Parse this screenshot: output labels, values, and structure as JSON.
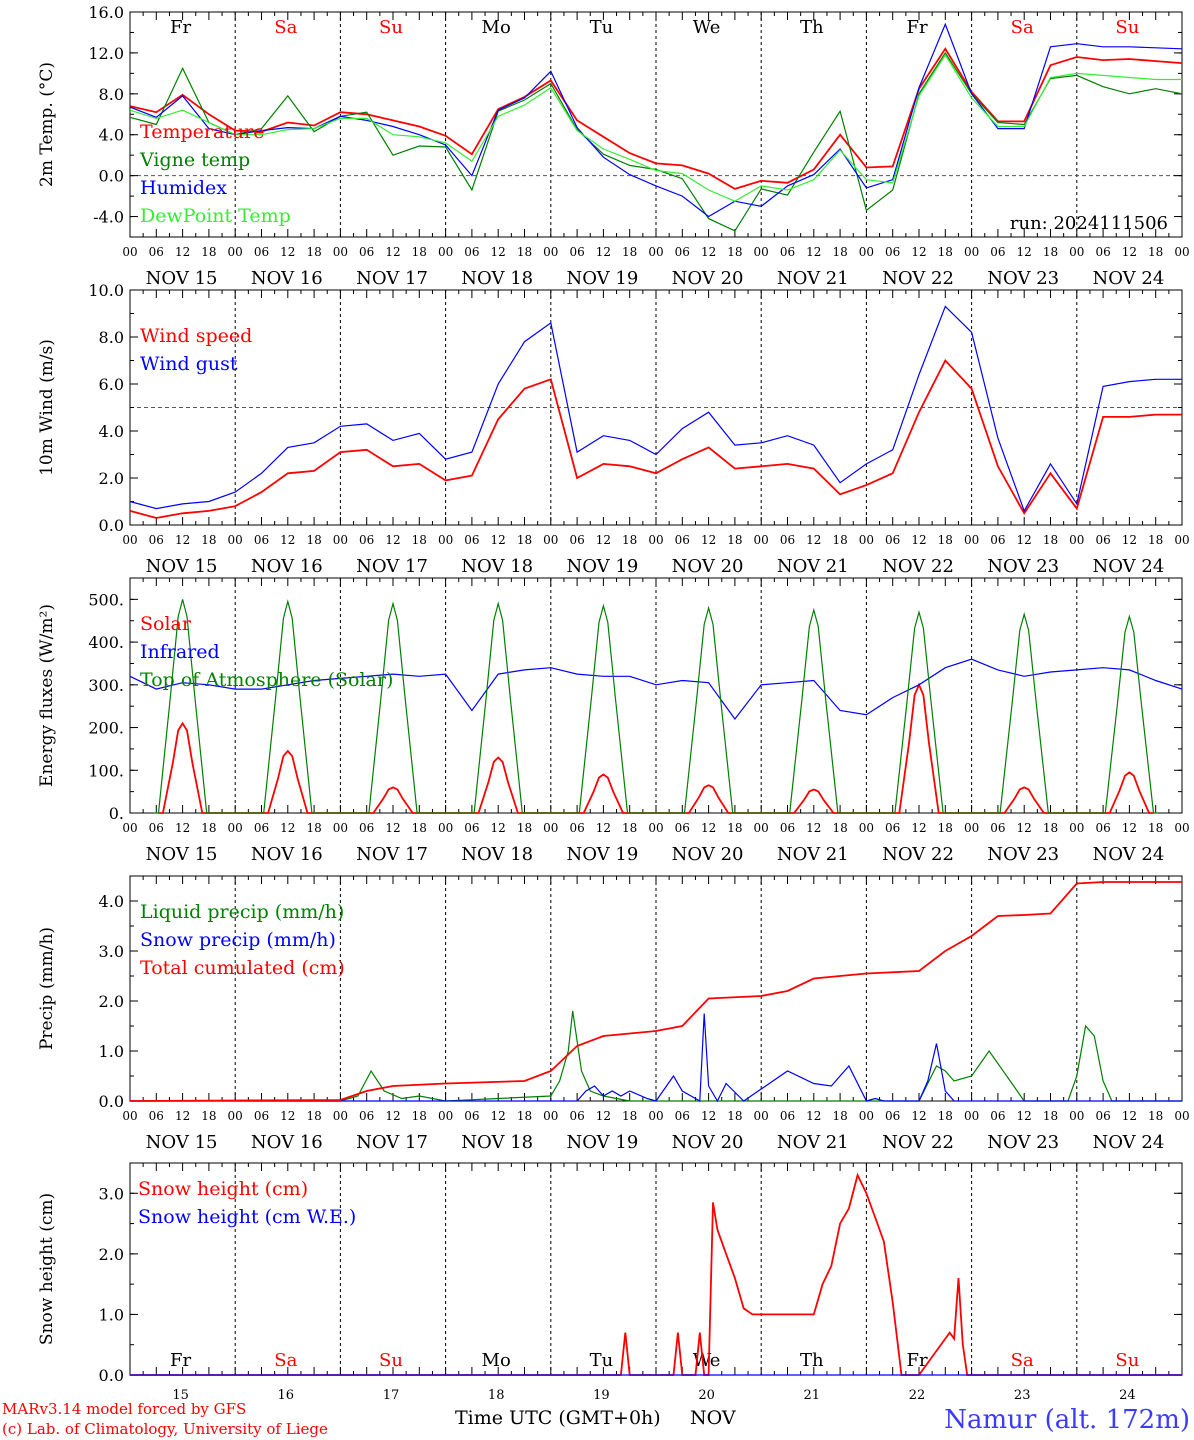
{
  "colors": {
    "red": "#ff0000",
    "green": "#008000",
    "blue": "#0000ff",
    "light_green": "#33ee33",
    "weekend": "#ff0000",
    "weekday": "#000000",
    "station": "#3b3bff"
  },
  "hour_ticks": [
    "00",
    "06",
    "12",
    "18"
  ],
  "date_labels": [
    "NOV 15",
    "NOV 16",
    "NOV 17",
    "NOV 18",
    "NOV 19",
    "NOV 20",
    "NOV 21",
    "NOV 22",
    "NOV 23",
    "NOV 24"
  ],
  "day_names": [
    {
      "label": "Fr",
      "weekend": false
    },
    {
      "label": "Sa",
      "weekend": true
    },
    {
      "label": "Su",
      "weekend": true
    },
    {
      "label": "Mo",
      "weekend": false
    },
    {
      "label": "Tu",
      "weekend": false
    },
    {
      "label": "We",
      "weekend": false
    },
    {
      "label": "Th",
      "weekend": false
    },
    {
      "label": "Fr",
      "weekend": false
    },
    {
      "label": "Sa",
      "weekend": true
    },
    {
      "label": "Su",
      "weekend": true
    }
  ],
  "bottom_day_numbers": [
    "15",
    "16",
    "17",
    "18",
    "19",
    "20",
    "21",
    "22",
    "23",
    "24"
  ],
  "footer": {
    "model": "MARv3.14 model forced by GFS",
    "credit": "(c) Lab. of Climatology, University of Liege",
    "time_label": "Time UTC (GMT+0h)",
    "month": "NOV",
    "station": "Namur (alt. 172m)"
  },
  "chart_data": [
    {
      "type": "line",
      "ylabel": "2m Temp. (°C)",
      "ylim": [
        -6,
        16
      ],
      "yticks": [
        "16.0",
        "12.0",
        "8.0",
        "4.0",
        "0.0",
        "-4.0"
      ],
      "ytick_values": [
        16,
        12,
        8,
        4,
        0,
        -4
      ],
      "reference_line": 0,
      "annotation": "run: 2024111506",
      "x_unit": "hours since NOV 15 00 UTC",
      "series": [
        {
          "name": "Temperature",
          "color": "red",
          "x": [
            0,
            6,
            12,
            18,
            24,
            30,
            36,
            42,
            48,
            54,
            60,
            66,
            72,
            78,
            84,
            90,
            96,
            102,
            108,
            114,
            120,
            126,
            132,
            138,
            144,
            150,
            156,
            162,
            168,
            174,
            180,
            186,
            192,
            198,
            204,
            210,
            216,
            222,
            228,
            234,
            240
          ],
          "y": [
            6.8,
            6.2,
            7.9,
            6.0,
            4.4,
            4.3,
            5.2,
            4.9,
            6.2,
            6.0,
            5.4,
            4.8,
            3.9,
            2.1,
            6.5,
            7.7,
            9.3,
            5.4,
            3.8,
            2.2,
            1.2,
            1.0,
            0.2,
            -1.3,
            -0.5,
            -0.7,
            0.6,
            4.0,
            0.8,
            0.9,
            8.5,
            12.4,
            8.2,
            5.3,
            5.3,
            10.8,
            11.6,
            11.3,
            11.4,
            11.2,
            11.0
          ]
        },
        {
          "name": "Vigne temp",
          "color": "green",
          "x": [
            0,
            6,
            12,
            18,
            24,
            30,
            36,
            42,
            48,
            54,
            60,
            66,
            72,
            78,
            84,
            90,
            96,
            102,
            108,
            114,
            120,
            126,
            132,
            138,
            144,
            150,
            156,
            162,
            168,
            174,
            180,
            186,
            192,
            198,
            204,
            210,
            216,
            222,
            228,
            234,
            240
          ],
          "y": [
            5.7,
            5.0,
            10.5,
            5.2,
            4.0,
            4.6,
            7.8,
            4.3,
            5.8,
            6.2,
            2.0,
            2.9,
            2.8,
            -1.4,
            6.3,
            7.4,
            9.0,
            4.5,
            2.1,
            1.0,
            0.6,
            -0.3,
            -4.2,
            -5.4,
            -1.3,
            -1.9,
            2.3,
            6.3,
            -3.4,
            -1.4,
            8.0,
            12.0,
            8.0,
            5.2,
            5.0,
            9.5,
            9.8,
            8.7,
            8.0,
            8.5,
            8.0
          ]
        },
        {
          "name": "Humidex",
          "color": "blue",
          "x": [
            0,
            6,
            12,
            18,
            24,
            30,
            36,
            42,
            48,
            54,
            60,
            66,
            72,
            78,
            84,
            90,
            96,
            102,
            108,
            114,
            120,
            126,
            132,
            138,
            144,
            150,
            156,
            162,
            168,
            174,
            180,
            186,
            192,
            198,
            204,
            210,
            216,
            222,
            228,
            234,
            240
          ],
          "y": [
            6.7,
            5.7,
            7.8,
            4.6,
            4.0,
            4.4,
            4.7,
            4.6,
            5.8,
            5.4,
            4.8,
            4.0,
            3.0,
            0.0,
            6.4,
            7.6,
            10.2,
            4.7,
            1.8,
            0.1,
            -1.0,
            -2.0,
            -4.0,
            -2.5,
            -3.0,
            -1.0,
            0.1,
            2.6,
            -1.2,
            -0.4,
            8.6,
            14.8,
            8.0,
            4.6,
            4.6,
            12.6,
            12.9,
            12.6,
            12.6,
            12.5,
            12.4
          ]
        },
        {
          "name": "DewPoint Temp",
          "color": "light_green",
          "x": [
            0,
            6,
            12,
            18,
            24,
            30,
            36,
            42,
            48,
            54,
            60,
            66,
            72,
            78,
            84,
            90,
            96,
            102,
            108,
            114,
            120,
            126,
            132,
            138,
            144,
            150,
            156,
            162,
            168,
            174,
            180,
            186,
            192,
            198,
            204,
            210,
            216,
            222,
            228,
            234,
            240
          ],
          "y": [
            6.4,
            5.6,
            6.4,
            5.2,
            4.0,
            4.0,
            4.5,
            4.6,
            5.6,
            5.6,
            4.0,
            3.8,
            3.2,
            1.4,
            5.8,
            6.9,
            8.6,
            4.4,
            2.6,
            1.6,
            0.5,
            0.2,
            -1.4,
            -2.5,
            -1.0,
            -1.4,
            -0.4,
            2.5,
            -0.4,
            -0.7,
            7.8,
            11.8,
            7.6,
            4.8,
            4.8,
            9.6,
            10.0,
            9.8,
            9.6,
            9.4,
            9.4
          ]
        }
      ]
    },
    {
      "type": "line",
      "ylabel": "10m Wind (m/s)",
      "ylim": [
        0,
        10
      ],
      "yticks": [
        "10.0",
        "8.0",
        "6.0",
        "4.0",
        "2.0",
        "0.0"
      ],
      "ytick_values": [
        10,
        8,
        6,
        4,
        2,
        0
      ],
      "reference_line": 5,
      "x_unit": "hours since NOV 15 00 UTC",
      "series": [
        {
          "name": "Wind speed",
          "color": "red",
          "x": [
            0,
            6,
            12,
            18,
            24,
            30,
            36,
            42,
            48,
            54,
            60,
            66,
            72,
            78,
            84,
            90,
            96,
            102,
            108,
            114,
            120,
            126,
            132,
            138,
            144,
            150,
            156,
            162,
            168,
            174,
            180,
            186,
            192,
            198,
            204,
            210,
            216,
            222,
            228,
            234,
            240
          ],
          "y": [
            0.6,
            0.3,
            0.5,
            0.6,
            0.8,
            1.4,
            2.2,
            2.3,
            3.1,
            3.2,
            2.5,
            2.6,
            1.9,
            2.1,
            4.5,
            5.8,
            6.2,
            2.0,
            2.6,
            2.5,
            2.2,
            2.8,
            3.3,
            2.4,
            2.5,
            2.6,
            2.4,
            1.3,
            1.7,
            2.2,
            4.8,
            7.0,
            5.8,
            2.5,
            0.5,
            2.2,
            0.7,
            4.6,
            4.6,
            4.7,
            4.7
          ]
        },
        {
          "name": "Wind gust",
          "color": "blue",
          "x": [
            0,
            6,
            12,
            18,
            24,
            30,
            36,
            42,
            48,
            54,
            60,
            66,
            72,
            78,
            84,
            90,
            96,
            102,
            108,
            114,
            120,
            126,
            132,
            138,
            144,
            150,
            156,
            162,
            168,
            174,
            180,
            186,
            192,
            198,
            204,
            210,
            216,
            222,
            228,
            234,
            240
          ],
          "y": [
            1.0,
            0.7,
            0.9,
            1.0,
            1.4,
            2.2,
            3.3,
            3.5,
            4.2,
            4.3,
            3.6,
            3.9,
            2.8,
            3.1,
            6.0,
            7.8,
            8.6,
            3.1,
            3.8,
            3.6,
            3.0,
            4.1,
            4.8,
            3.4,
            3.5,
            3.8,
            3.4,
            1.8,
            2.6,
            3.2,
            6.4,
            9.3,
            8.2,
            3.7,
            0.6,
            2.6,
            0.9,
            5.9,
            6.1,
            6.2,
            6.2
          ]
        }
      ]
    },
    {
      "type": "line",
      "ylabel": "Energy fluxes (W/m²)",
      "ylim": [
        0,
        550
      ],
      "yticks": [
        "500.",
        "400.",
        "300.",
        "200.",
        "100.",
        "0."
      ],
      "ytick_values": [
        500,
        400,
        300,
        200,
        100,
        0
      ],
      "x_unit": "hours since NOV 15 00 UTC",
      "series": [
        {
          "name": "Solar",
          "color": "red",
          "daily_peak_hour": 12,
          "daily_peaks": [
            210,
            145,
            60,
            130,
            90,
            65,
            55,
            300,
            60,
            95
          ]
        },
        {
          "name": "Infrared",
          "color": "blue",
          "x": [
            0,
            6,
            12,
            18,
            24,
            30,
            36,
            42,
            48,
            54,
            60,
            66,
            72,
            78,
            84,
            90,
            96,
            102,
            108,
            114,
            120,
            126,
            132,
            138,
            144,
            150,
            156,
            162,
            168,
            174,
            180,
            186,
            192,
            198,
            204,
            210,
            216,
            222,
            228,
            234,
            240
          ],
          "y": [
            320,
            290,
            305,
            300,
            290,
            290,
            300,
            310,
            315,
            320,
            325,
            320,
            325,
            240,
            325,
            335,
            340,
            325,
            320,
            320,
            300,
            310,
            305,
            220,
            300,
            305,
            310,
            240,
            230,
            270,
            300,
            340,
            360,
            335,
            320,
            330,
            335,
            340,
            335,
            310,
            290
          ]
        },
        {
          "name": "Top of Atmosphere (Solar)",
          "color": "green",
          "daily_peak_hour": 12,
          "daily_peaks": [
            500,
            495,
            490,
            490,
            485,
            480,
            475,
            470,
            465,
            460
          ]
        }
      ]
    },
    {
      "type": "line",
      "ylabel": "Precip (mm/h)",
      "ylim": [
        0,
        4.5
      ],
      "yticks": [
        "4.0",
        "3.0",
        "2.0",
        "1.0",
        "0.0"
      ],
      "ytick_values": [
        4,
        3,
        2,
        1,
        0
      ],
      "x_unit": "hours since NOV 15 00 UTC",
      "series": [
        {
          "name": "Liquid precip (mm/h)",
          "color": "green",
          "x": [
            0,
            48,
            52,
            55,
            58,
            62,
            66,
            72,
            96,
            98,
            100,
            101,
            103,
            105,
            108,
            114,
            120,
            180,
            184,
            186,
            188,
            192,
            196,
            200,
            204,
            214,
            216,
            218,
            220,
            222,
            224,
            228,
            240
          ],
          "y": [
            0,
            0,
            0.1,
            0.6,
            0.2,
            0.05,
            0.1,
            0,
            0.1,
            0.4,
            1.0,
            1.8,
            0.6,
            0.2,
            0.1,
            0,
            0,
            0,
            0.7,
            0.6,
            0.4,
            0.5,
            1.0,
            0.5,
            0,
            0,
            0.5,
            1.5,
            1.3,
            0.4,
            0,
            0,
            0
          ]
        },
        {
          "name": "Snow precip (mm/h)",
          "color": "blue",
          "x": [
            0,
            102,
            104,
            106,
            108,
            110,
            112,
            114,
            118,
            120,
            124,
            126,
            130,
            131,
            132,
            134,
            136,
            140,
            150,
            156,
            160,
            164,
            168,
            170,
            172,
            180,
            182,
            184,
            186,
            188,
            196,
            240
          ],
          "y": [
            0,
            0,
            0.2,
            0.3,
            0.1,
            0.2,
            0.1,
            0.2,
            0.05,
            0,
            0.5,
            0.2,
            0,
            1.75,
            0.3,
            0,
            0.35,
            0,
            0.6,
            0.35,
            0.3,
            0.7,
            0,
            0.05,
            0,
            0,
            0.4,
            1.15,
            0.2,
            0,
            0,
            0
          ]
        },
        {
          "name": "Total cumulated (cm)",
          "color": "red",
          "x": [
            0,
            48,
            54,
            60,
            72,
            90,
            96,
            102,
            108,
            114,
            120,
            126,
            132,
            144,
            150,
            156,
            168,
            180,
            186,
            192,
            198,
            204,
            210,
            216,
            222,
            228,
            234,
            240
          ],
          "y": [
            0,
            0.02,
            0.2,
            0.3,
            0.35,
            0.4,
            0.6,
            1.1,
            1.3,
            1.35,
            1.4,
            1.5,
            2.05,
            2.1,
            2.2,
            2.45,
            2.55,
            2.6,
            3.0,
            3.3,
            3.7,
            3.72,
            3.75,
            4.35,
            4.38,
            4.38,
            4.38,
            4.38
          ]
        }
      ]
    },
    {
      "type": "line",
      "ylabel": "Snow height (cm)",
      "ylim": [
        0,
        3.5
      ],
      "yticks": [
        "3.0",
        "2.0",
        "1.0",
        "0.0"
      ],
      "ytick_values": [
        3,
        2,
        1,
        0
      ],
      "x_unit": "hours since NOV 15 00 UTC",
      "series": [
        {
          "name": "Snow height (cm)",
          "color": "red",
          "x": [
            0,
            112,
            113,
            114,
            124,
            125,
            126,
            129,
            130,
            131,
            132,
            133,
            134,
            136,
            138,
            140,
            142,
            144,
            150,
            156,
            158,
            160,
            162,
            164,
            166,
            168,
            170,
            172,
            174,
            176,
            177,
            178,
            180,
            187,
            188,
            189,
            190,
            191,
            240
          ],
          "y": [
            0,
            0,
            0.7,
            0,
            0,
            0.7,
            0,
            0,
            0.7,
            0,
            0,
            2.85,
            2.4,
            2.0,
            1.6,
            1.1,
            1.0,
            1.0,
            1.0,
            1.0,
            1.5,
            1.8,
            2.5,
            2.75,
            3.3,
            3.0,
            2.6,
            2.2,
            1.2,
            0,
            0,
            0,
            0,
            0.7,
            0.6,
            1.6,
            0.5,
            0,
            0
          ]
        },
        {
          "name": "Snow height (cm W.E.)",
          "color": "blue",
          "x": [
            0,
            240
          ],
          "y": [
            0,
            0
          ]
        }
      ]
    }
  ]
}
